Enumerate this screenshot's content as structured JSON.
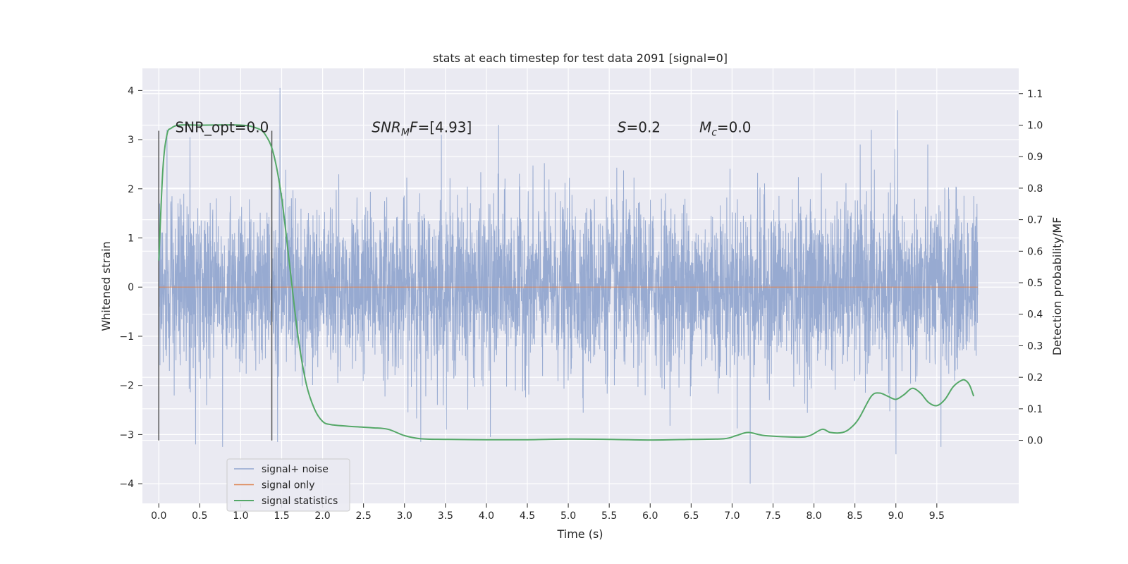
{
  "chart_data": {
    "type": "line",
    "title": "stats at each timestep for test data 2091 [signal=0]",
    "xlabel": "Time (s)",
    "ylabel": "Whitened strain",
    "y2label": "Detection probability/MF",
    "xlim": [
      -0.2,
      10.5
    ],
    "ylim": [
      -4.4,
      4.45
    ],
    "y2lim": [
      -0.2,
      1.18
    ],
    "x_ticks": [
      0.0,
      0.5,
      1.0,
      1.5,
      2.0,
      2.5,
      3.0,
      3.5,
      4.0,
      4.5,
      5.0,
      5.5,
      6.0,
      6.5,
      7.0,
      7.5,
      8.0,
      8.5,
      9.0,
      9.5
    ],
    "y_ticks": [
      -4,
      -3,
      -2,
      -1,
      0,
      1,
      2,
      3,
      4
    ],
    "y2_ticks": [
      0.0,
      0.1,
      0.2,
      0.3,
      0.4,
      0.5,
      0.6,
      0.7,
      0.8,
      0.9,
      1.0,
      1.1
    ],
    "grid": true,
    "legend_position": "lower-left",
    "annotations": [
      {
        "text": "SNR_opt=0.0",
        "x": 0.2,
        "y": 3.25
      },
      {
        "text": "SNR_MF=[4.93]",
        "x": 2.6,
        "y": 3.25
      },
      {
        "text": "S=0.2",
        "x": 5.6,
        "y": 3.25
      },
      {
        "text": "M_c=0.0",
        "x": 6.6,
        "y": 3.25
      }
    ],
    "vertical_lines": [
      {
        "x": 0.0,
        "y_range": [
          -3.12,
          3.18
        ]
      },
      {
        "x": 1.38,
        "y_range": [
          -3.12,
          3.18
        ]
      }
    ],
    "series": [
      {
        "name": "signal+ noise",
        "color": "#92a6cf",
        "axis": "left",
        "x_range": [
          0.0,
          10.0
        ],
        "points": 4096,
        "typical_band": [
          -1.3,
          1.3
        ],
        "peaks": [
          {
            "x": 0.1,
            "y": 3.2
          },
          {
            "x": 0.38,
            "y": 3.05
          },
          {
            "x": 0.45,
            "y": -3.2
          },
          {
            "x": 0.78,
            "y": -3.25
          },
          {
            "x": 1.48,
            "y": 4.05
          },
          {
            "x": 1.45,
            "y": -3.15
          },
          {
            "x": 3.2,
            "y": -3.15
          },
          {
            "x": 3.45,
            "y": 3.1
          },
          {
            "x": 4.05,
            "y": -3.05
          },
          {
            "x": 4.15,
            "y": 3.3
          },
          {
            "x": 7.22,
            "y": -4.0
          },
          {
            "x": 8.7,
            "y": 3.2
          },
          {
            "x": 9.02,
            "y": 3.6
          },
          {
            "x": 9.0,
            "y": -3.4
          },
          {
            "x": 9.55,
            "y": -3.25
          }
        ]
      },
      {
        "name": "signal only",
        "color": "#dd8452",
        "axis": "left",
        "x": [
          0.0,
          10.0
        ],
        "y": [
          0.0,
          0.0
        ]
      },
      {
        "name": "signal statistics",
        "color": "#55a868",
        "axis": "right",
        "x": [
          0.0,
          0.05,
          0.1,
          0.15,
          0.25,
          0.5,
          1.0,
          1.2,
          1.3,
          1.4,
          1.5,
          1.6,
          1.7,
          1.8,
          1.9,
          2.0,
          2.1,
          2.3,
          2.6,
          2.8,
          3.0,
          3.2,
          3.5,
          4.0,
          4.5,
          5.0,
          5.5,
          6.0,
          6.5,
          6.9,
          7.05,
          7.2,
          7.4,
          7.8,
          7.95,
          8.1,
          8.2,
          8.35,
          8.45,
          8.55,
          8.7,
          8.8,
          8.9,
          9.0,
          9.1,
          9.2,
          9.3,
          9.4,
          9.5,
          9.6,
          9.7,
          9.8,
          9.85,
          9.9,
          9.95
        ],
        "y": [
          0.57,
          0.86,
          0.97,
          0.99,
          1.0,
          1.0,
          1.0,
          0.99,
          0.97,
          0.91,
          0.77,
          0.55,
          0.33,
          0.18,
          0.1,
          0.06,
          0.05,
          0.045,
          0.04,
          0.035,
          0.015,
          0.005,
          0.003,
          0.002,
          0.002,
          0.004,
          0.003,
          0.001,
          0.003,
          0.005,
          0.015,
          0.025,
          0.015,
          0.01,
          0.015,
          0.035,
          0.025,
          0.025,
          0.04,
          0.07,
          0.14,
          0.15,
          0.14,
          0.13,
          0.145,
          0.165,
          0.15,
          0.12,
          0.11,
          0.13,
          0.17,
          0.19,
          0.19,
          0.175,
          0.14
        ]
      }
    ]
  }
}
